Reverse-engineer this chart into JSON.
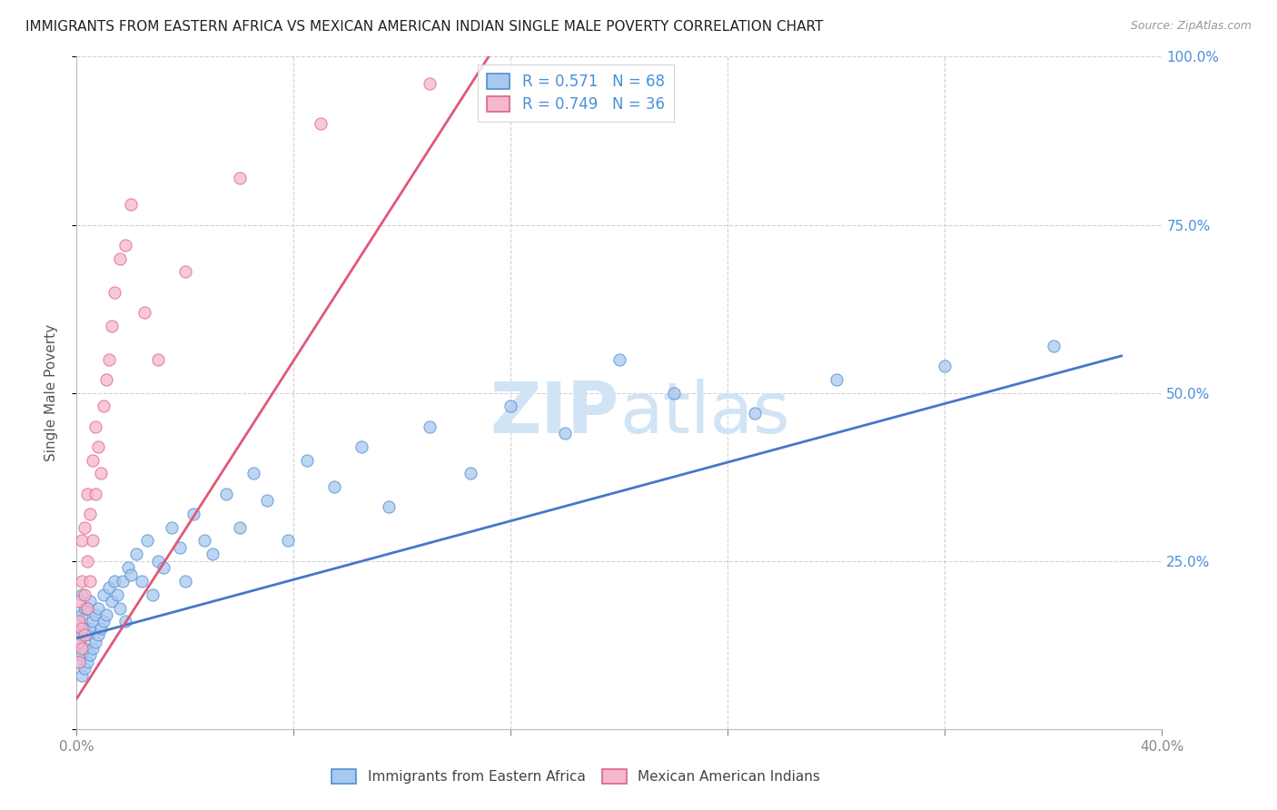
{
  "title": "IMMIGRANTS FROM EASTERN AFRICA VS MEXICAN AMERICAN INDIAN SINGLE MALE POVERTY CORRELATION CHART",
  "source": "Source: ZipAtlas.com",
  "ylabel_label": "Single Male Poverty",
  "legend_blue_label": "Immigrants from Eastern Africa",
  "legend_pink_label": "Mexican American Indians",
  "R_blue": 0.571,
  "N_blue": 68,
  "R_pink": 0.749,
  "N_pink": 36,
  "blue_fill": "#A8C8F0",
  "pink_fill": "#F5B8CC",
  "blue_edge": "#5090D0",
  "pink_edge": "#E06090",
  "blue_line": "#4478C8",
  "pink_line": "#E05878",
  "watermark_color": "#D0E4F5",
  "annotation_color": "#4A90D9",
  "grid_color": "#CCCCCC",
  "xlim": [
    0.0,
    0.4
  ],
  "ylim": [
    0.0,
    1.0
  ],
  "blue_trend_x": [
    0.0,
    0.385
  ],
  "blue_trend_y": [
    0.135,
    0.555
  ],
  "pink_trend_x": [
    0.0,
    0.155
  ],
  "pink_trend_y": [
    0.045,
    1.02
  ],
  "blue_x": [
    0.001,
    0.001,
    0.001,
    0.002,
    0.002,
    0.002,
    0.002,
    0.002,
    0.003,
    0.003,
    0.003,
    0.003,
    0.004,
    0.004,
    0.004,
    0.005,
    0.005,
    0.005,
    0.006,
    0.006,
    0.007,
    0.007,
    0.008,
    0.008,
    0.009,
    0.01,
    0.01,
    0.011,
    0.012,
    0.013,
    0.014,
    0.015,
    0.016,
    0.017,
    0.018,
    0.019,
    0.02,
    0.022,
    0.024,
    0.026,
    0.028,
    0.03,
    0.032,
    0.035,
    0.038,
    0.04,
    0.043,
    0.047,
    0.05,
    0.055,
    0.06,
    0.065,
    0.07,
    0.078,
    0.085,
    0.095,
    0.105,
    0.115,
    0.13,
    0.145,
    0.16,
    0.18,
    0.2,
    0.22,
    0.25,
    0.28,
    0.32,
    0.36
  ],
  "blue_y": [
    0.1,
    0.13,
    0.16,
    0.08,
    0.11,
    0.14,
    0.17,
    0.2,
    0.09,
    0.12,
    0.15,
    0.18,
    0.1,
    0.14,
    0.18,
    0.11,
    0.15,
    0.19,
    0.12,
    0.16,
    0.13,
    0.17,
    0.14,
    0.18,
    0.15,
    0.16,
    0.2,
    0.17,
    0.21,
    0.19,
    0.22,
    0.2,
    0.18,
    0.22,
    0.16,
    0.24,
    0.23,
    0.26,
    0.22,
    0.28,
    0.2,
    0.25,
    0.24,
    0.3,
    0.27,
    0.22,
    0.32,
    0.28,
    0.26,
    0.35,
    0.3,
    0.38,
    0.34,
    0.28,
    0.4,
    0.36,
    0.42,
    0.33,
    0.45,
    0.38,
    0.48,
    0.44,
    0.55,
    0.5,
    0.47,
    0.52,
    0.54,
    0.57
  ],
  "pink_x": [
    0.001,
    0.001,
    0.001,
    0.001,
    0.002,
    0.002,
    0.002,
    0.002,
    0.003,
    0.003,
    0.003,
    0.004,
    0.004,
    0.004,
    0.005,
    0.005,
    0.006,
    0.006,
    0.007,
    0.007,
    0.008,
    0.009,
    0.01,
    0.011,
    0.012,
    0.013,
    0.014,
    0.016,
    0.018,
    0.02,
    0.025,
    0.03,
    0.04,
    0.06,
    0.09,
    0.13
  ],
  "pink_y": [
    0.1,
    0.13,
    0.16,
    0.19,
    0.12,
    0.15,
    0.22,
    0.28,
    0.14,
    0.2,
    0.3,
    0.18,
    0.25,
    0.35,
    0.22,
    0.32,
    0.28,
    0.4,
    0.35,
    0.45,
    0.42,
    0.38,
    0.48,
    0.52,
    0.55,
    0.6,
    0.65,
    0.7,
    0.72,
    0.78,
    0.62,
    0.55,
    0.68,
    0.82,
    0.9,
    0.96
  ]
}
